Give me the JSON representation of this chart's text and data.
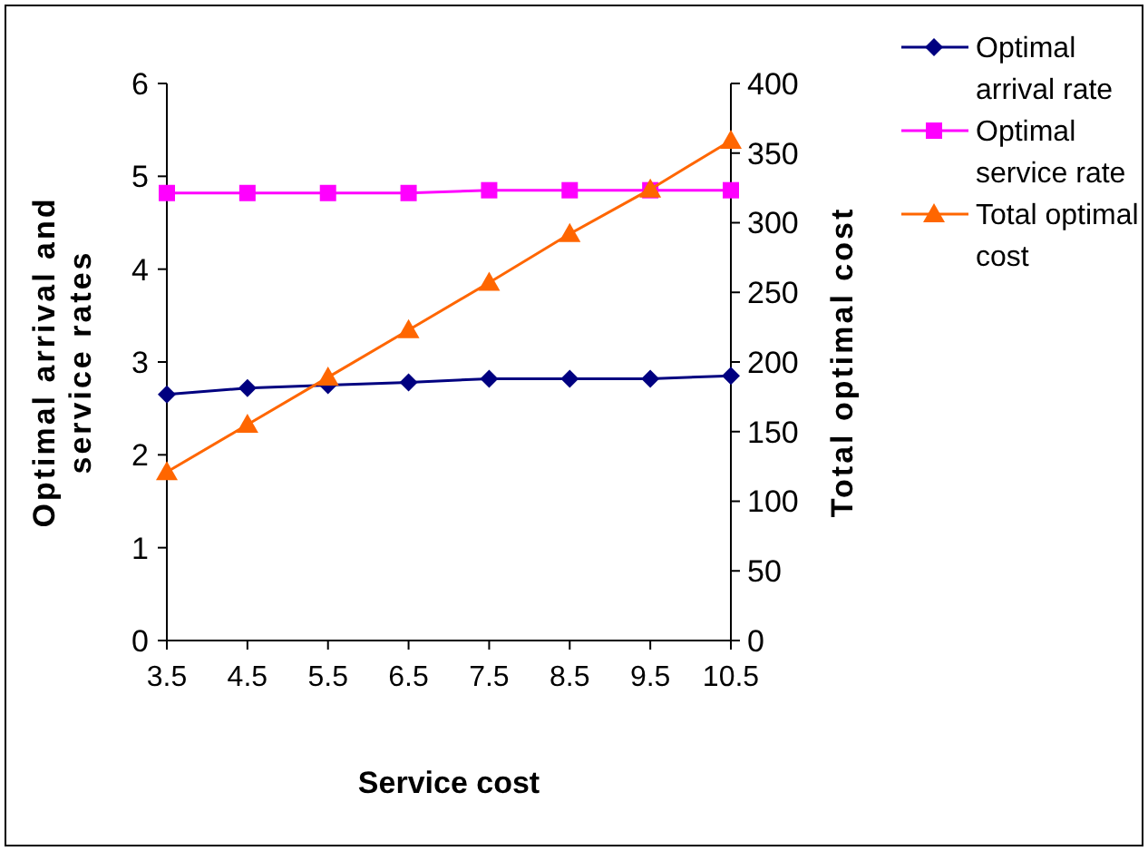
{
  "chart_data": {
    "type": "line",
    "xlabel": "Service cost",
    "ylabel": "Optimal arrival and service rates",
    "y2label": "Total optimal cost",
    "categories": [
      "3.5",
      "4.5",
      "5.5",
      "6.5",
      "7.5",
      "8.5",
      "9.5",
      "10.5"
    ],
    "series": [
      {
        "name": "Optimal arrival rate",
        "color": "#000080",
        "marker": "diamond",
        "values": [
          2.65,
          2.72,
          2.75,
          2.78,
          2.82,
          2.82,
          2.82,
          2.85
        ]
      },
      {
        "name": "Optimal service rate",
        "color": "#ff00ff",
        "marker": "square",
        "values": [
          4.82,
          4.82,
          4.82,
          4.82,
          4.85,
          4.85,
          4.85,
          4.85
        ]
      },
      {
        "name": "Total optimal cost",
        "color": "#ff6600",
        "marker": "triangle",
        "axis": "y2",
        "values": [
          121,
          155,
          189,
          223,
          257,
          292,
          324,
          359
        ]
      }
    ],
    "ylim": [
      0,
      6
    ],
    "yticks": [
      0,
      1,
      2,
      3,
      4,
      5,
      6
    ],
    "y2lim": [
      0,
      400
    ],
    "y2ticks": [
      0,
      50,
      100,
      150,
      200,
      250,
      300,
      350,
      400
    ],
    "grid": false,
    "legend": "top right"
  }
}
